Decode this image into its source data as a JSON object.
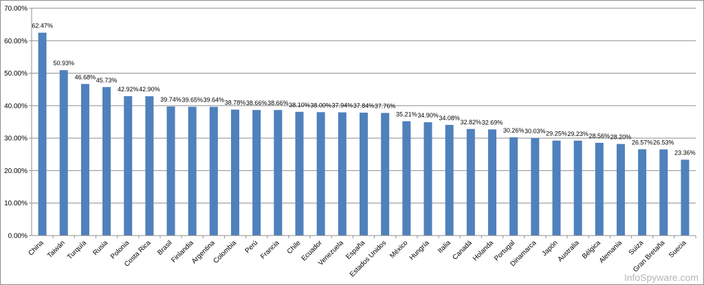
{
  "chart_data": {
    "type": "bar",
    "title": "",
    "xlabel": "",
    "ylabel": "",
    "ylim": [
      0,
      70
    ],
    "yticks": [
      "0.00%",
      "10.00%",
      "20.00%",
      "30.00%",
      "40.00%",
      "50.00%",
      "60.00%",
      "70.00%"
    ],
    "grid": "horizontal",
    "bar_color": "#4f81bd",
    "categories": [
      "China",
      "Taiwán",
      "Turquía",
      "Rusia",
      "Polonia",
      "Costa Rica",
      "Brasil",
      "Finlandia",
      "Argentina",
      "Colombia",
      "Perú",
      "Francia",
      "Chile",
      "Ecuador",
      "Venezuela",
      "España",
      "Estados Unidos",
      "México",
      "Hungría",
      "Italia",
      "Canadá",
      "Holanda",
      "Portugal",
      "Dinamarca",
      "Japón",
      "Australia",
      "Bélgica",
      "Alemania",
      "Suiza",
      "Gran Bretaña",
      "Suecia"
    ],
    "values": [
      62.47,
      50.93,
      46.68,
      45.73,
      42.92,
      42.9,
      39.74,
      39.65,
      39.64,
      38.78,
      38.66,
      38.66,
      38.1,
      38.0,
      37.94,
      37.84,
      37.76,
      35.21,
      34.9,
      34.08,
      32.82,
      32.69,
      30.26,
      30.03,
      29.25,
      29.23,
      28.56,
      28.2,
      26.57,
      26.53,
      23.36
    ],
    "labels": [
      "62.47%",
      "50.93%",
      "46.68%",
      "45.73%",
      "42.92%",
      "42.90%",
      "39.74%",
      "39.65%",
      "39.64%",
      "38.78%",
      "38.66%",
      "38.66%",
      "38.10%",
      "38.00%",
      "37.94%",
      "37.84%",
      "37.76%",
      "35.21%",
      "34.90%",
      "34.08%",
      "32.82%",
      "32.69%",
      "30.26%",
      "30.03%",
      "29.25%",
      "29.23%",
      "28.56%",
      "28.20%",
      "26.57%",
      "26.53%",
      "23.36%"
    ]
  },
  "watermark": "InfoSpyware.com"
}
